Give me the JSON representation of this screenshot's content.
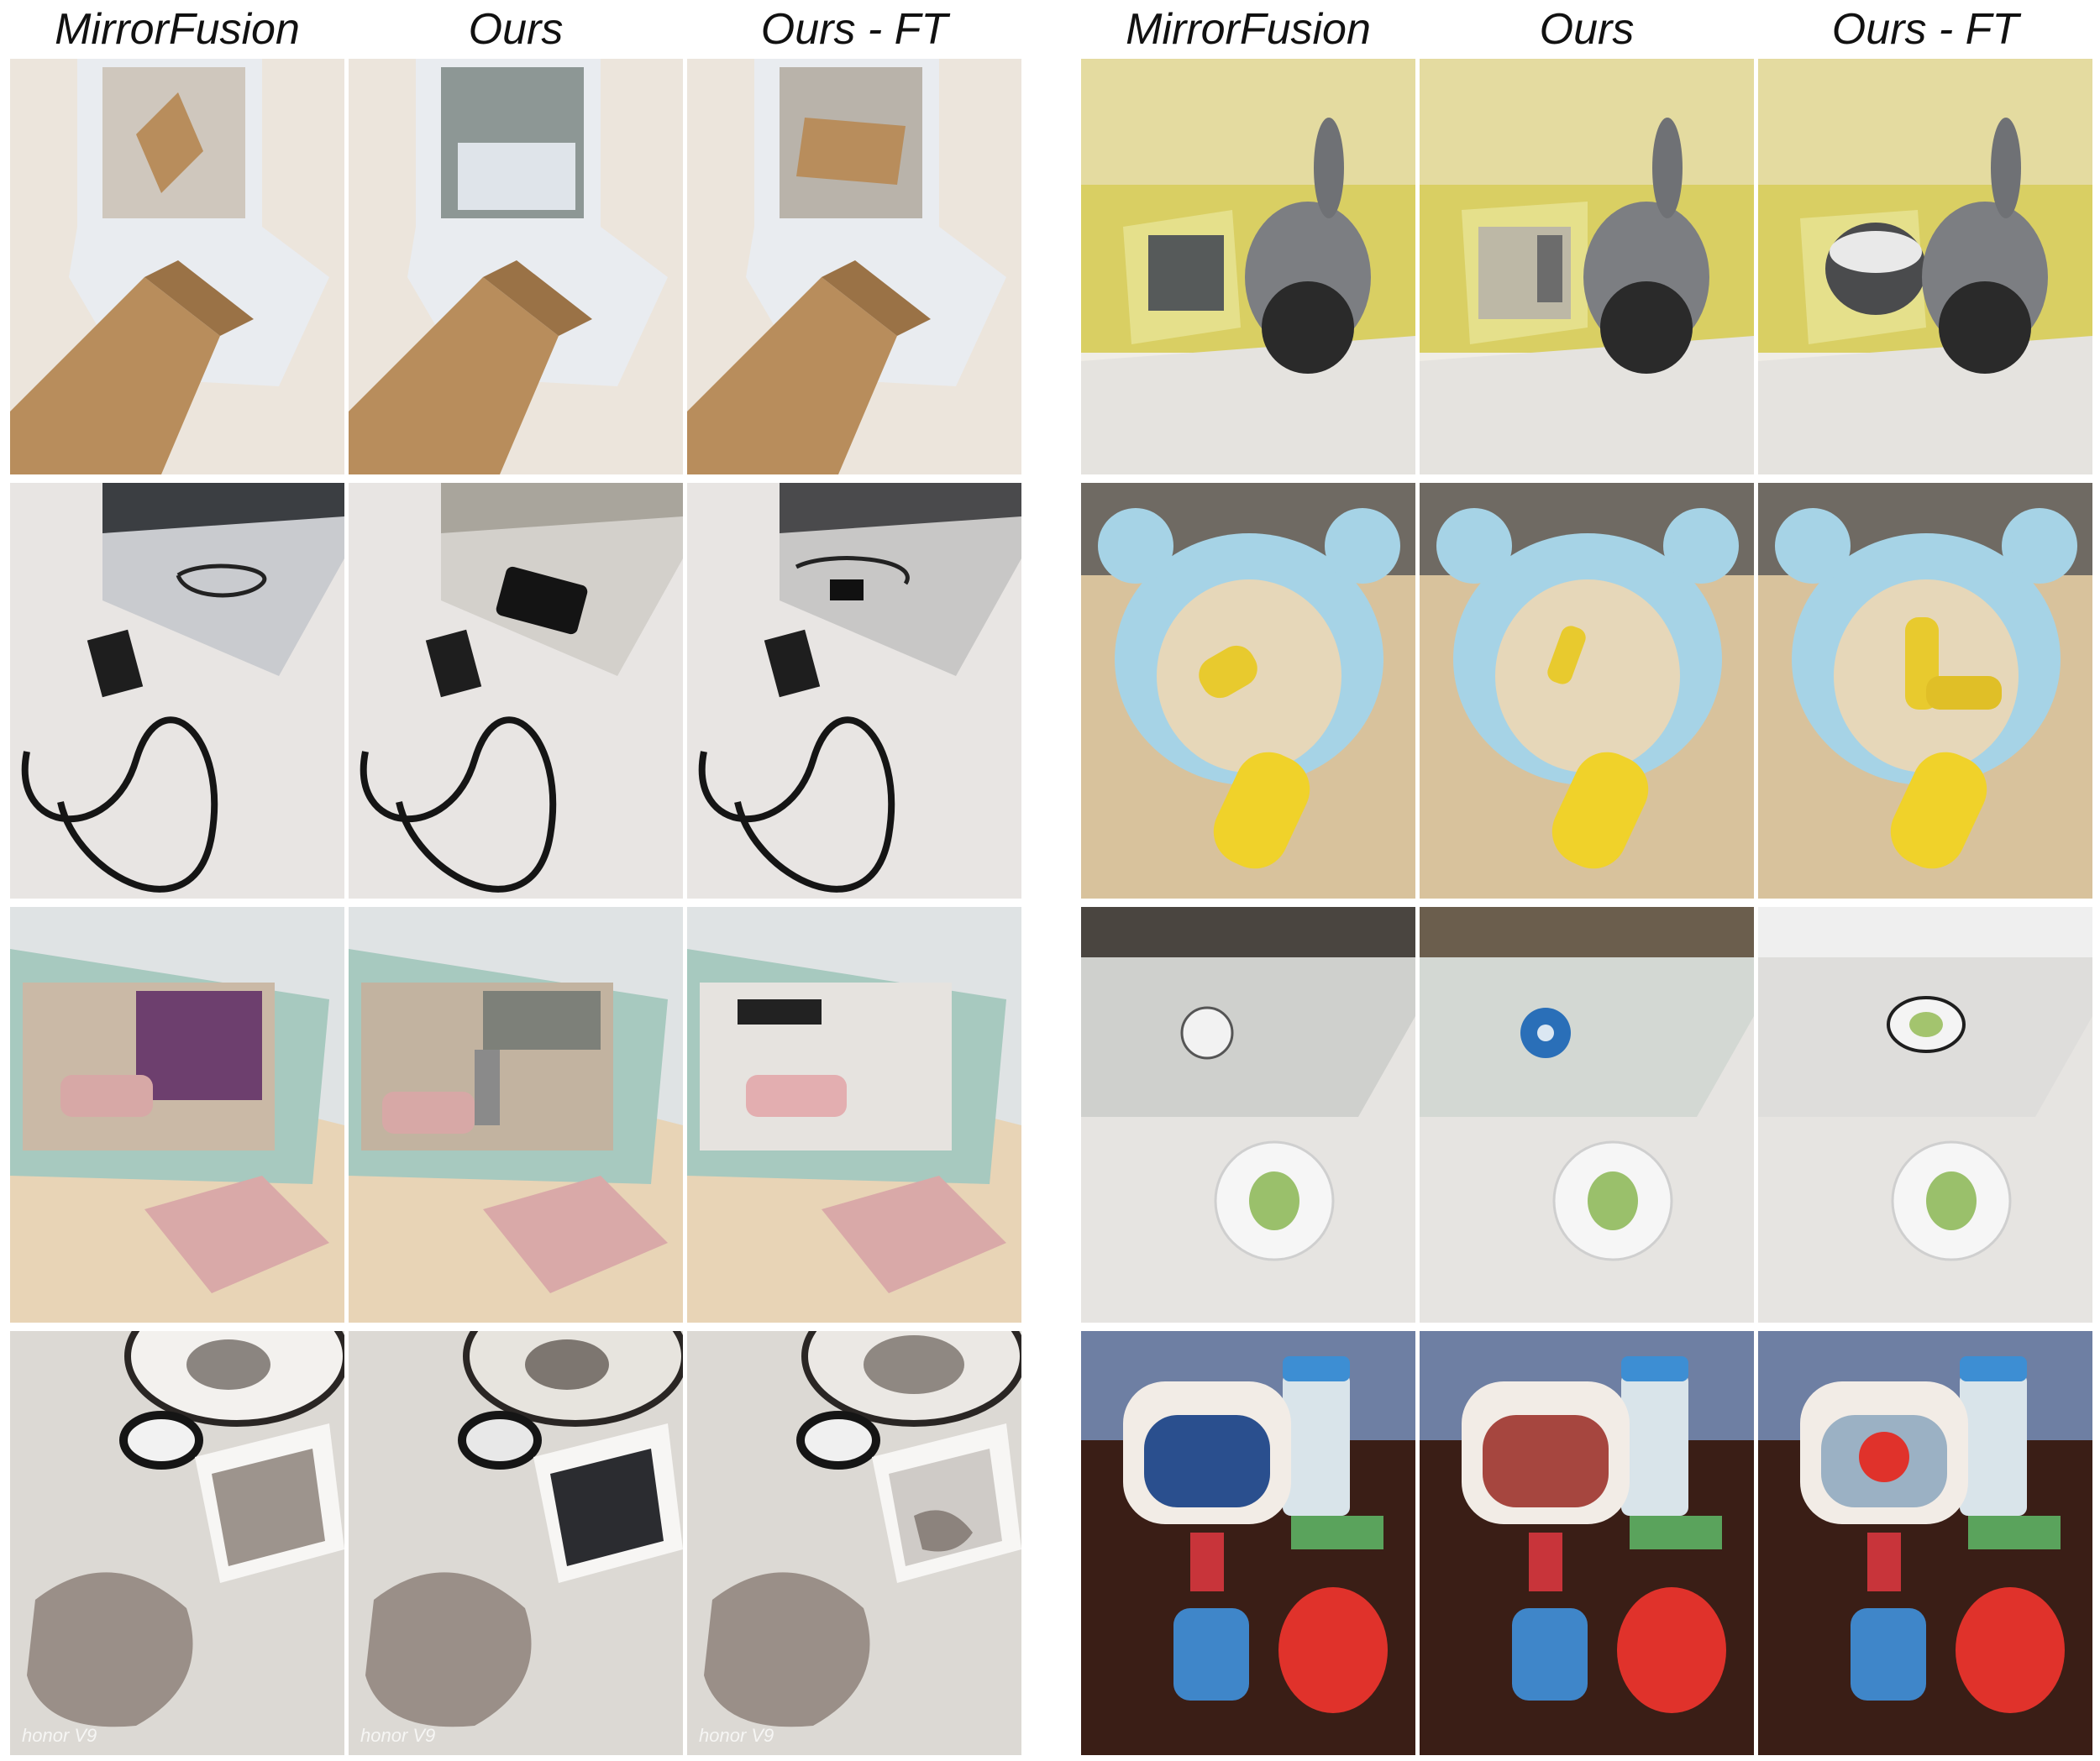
{
  "headers": [
    "MirrorFusion",
    "Ours",
    "Ours - FT",
    "MirrorFusion",
    "Ours",
    "Ours - FT"
  ],
  "watermark": "honor V9",
  "colors": {
    "background": "#ffffff",
    "table_cream": "#ece5dc",
    "cardboard": "#b88d5c",
    "wood_light": "#e8d4b6",
    "shelf_yellow": "#d9cf63",
    "foam_yellow": "#f0d22a",
    "fabric_blue": "#3f86c9",
    "toy_red": "#e0322b",
    "mirror_frame_mint": "#a7c9bf",
    "dark_table": "#3a1e16"
  }
}
